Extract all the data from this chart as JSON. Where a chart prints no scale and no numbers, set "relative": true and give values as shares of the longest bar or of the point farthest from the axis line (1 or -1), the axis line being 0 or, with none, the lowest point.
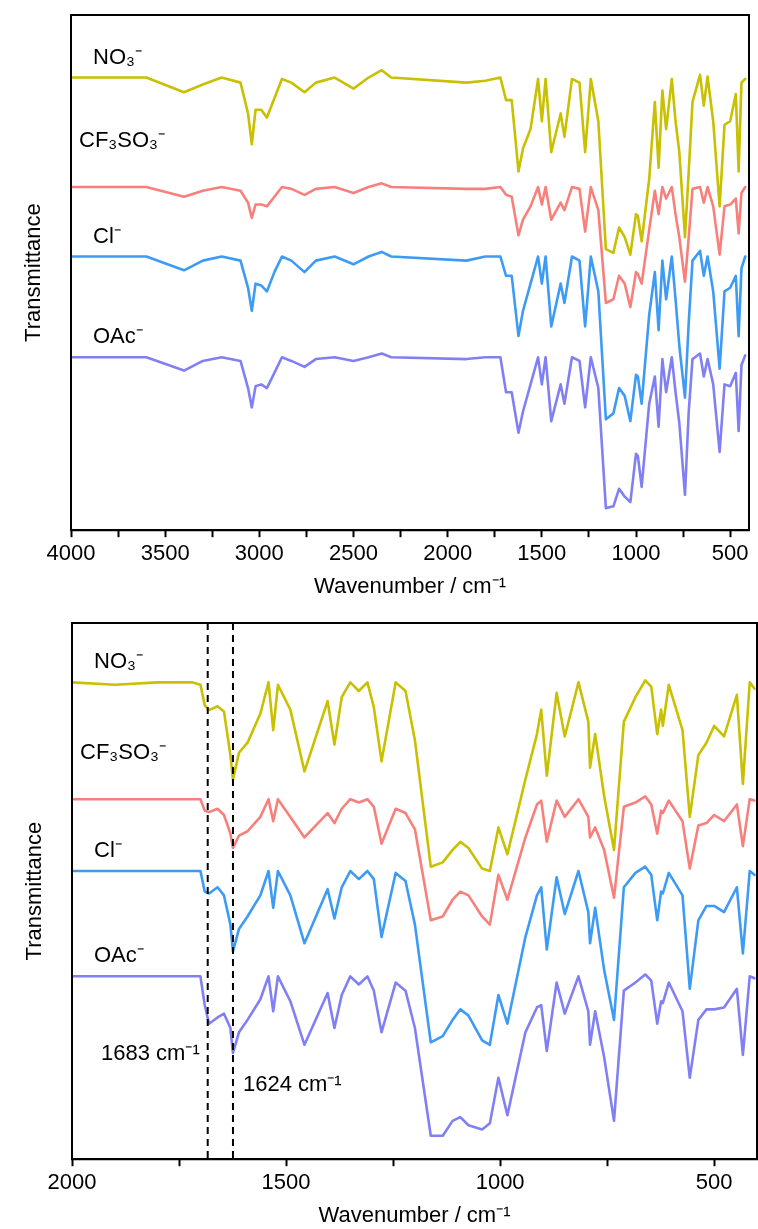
{
  "chart_data": [
    {
      "type": "line",
      "relative": true,
      "xlabel": "Wavenumber / cm⁻¹",
      "ylabel": "Transmittance",
      "legend": false,
      "xlim": [
        4000,
        400
      ],
      "xticks": [
        4000,
        {
          "value": 3750,
          "label": null
        },
        3500,
        {
          "value": 3250,
          "label": null
        },
        3000,
        {
          "value": 2750,
          "label": null
        },
        2500,
        {
          "value": 2250,
          "label": null
        },
        2000,
        {
          "value": 1750,
          "label": null
        },
        1500,
        {
          "value": 1250,
          "label": null
        },
        1000,
        {
          "value": 750,
          "label": null
        },
        500
      ],
      "x": [
        4000,
        3600,
        3400,
        3300,
        3200,
        3100,
        3060,
        3040,
        3020,
        2990,
        2960,
        2920,
        2880,
        2830,
        2760,
        2700,
        2600,
        2500,
        2420,
        2350,
        2300,
        1900,
        1800,
        1720,
        1690,
        1660,
        1624,
        1600,
        1560,
        1520,
        1500,
        1480,
        1450,
        1400,
        1380,
        1340,
        1300,
        1270,
        1240,
        1200,
        1160,
        1120,
        1090,
        1060,
        1030,
        1000,
        990,
        970,
        930,
        900,
        880,
        860,
        840,
        810,
        790,
        770,
        740,
        720,
        700,
        660,
        640,
        620,
        590,
        556,
        530,
        500,
        470,
        455,
        440,
        420
      ],
      "series": [
        {
          "name": "NO₃⁻",
          "color": "#c8c000",
          "values": [
            0.984,
            0.984,
            0.952,
            0.969,
            0.984,
            0.973,
            0.906,
            0.839,
            0.914,
            0.914,
            0.897,
            0.939,
            0.981,
            0.973,
            0.952,
            0.973,
            0.984,
            0.96,
            0.984,
            1.0,
            0.984,
            0.973,
            0.977,
            0.984,
            0.935,
            0.935,
            0.78,
            0.83,
            0.872,
            0.981,
            0.889,
            0.981,
            0.822,
            0.906,
            0.855,
            0.981,
            0.973,
            0.822,
            0.981,
            0.889,
            0.611,
            0.603,
            0.658,
            0.637,
            0.599,
            0.687,
            0.683,
            0.628,
            0.763,
            0.931,
            0.788,
            0.956,
            0.872,
            0.981,
            0.889,
            0.822,
            0.637,
            0.78,
            0.931,
            0.99,
            0.923,
            0.986,
            0.889,
            0.704,
            0.881,
            0.889,
            0.948,
            0.78,
            0.973,
            0.981
          ]
        },
        {
          "name": "CF₃SO₃⁻",
          "color": "#f8807c",
          "values": [
            0.746,
            0.746,
            0.725,
            0.738,
            0.746,
            0.738,
            0.712,
            0.679,
            0.708,
            0.708,
            0.704,
            0.725,
            0.746,
            0.742,
            0.729,
            0.742,
            0.746,
            0.733,
            0.746,
            0.754,
            0.746,
            0.742,
            0.742,
            0.746,
            0.729,
            0.725,
            0.641,
            0.675,
            0.704,
            0.746,
            0.708,
            0.746,
            0.675,
            0.712,
            0.696,
            0.746,
            0.742,
            0.649,
            0.746,
            0.696,
            0.494,
            0.502,
            0.553,
            0.536,
            0.485,
            0.561,
            0.557,
            0.536,
            0.653,
            0.738,
            0.687,
            0.746,
            0.721,
            0.746,
            0.687,
            0.637,
            0.54,
            0.637,
            0.742,
            0.746,
            0.712,
            0.746,
            0.704,
            0.599,
            0.704,
            0.708,
            0.721,
            0.645,
            0.733,
            0.746
          ]
        },
        {
          "name": "Cl⁻",
          "color": "#3d9bf5",
          "values": [
            0.595,
            0.595,
            0.565,
            0.586,
            0.595,
            0.586,
            0.527,
            0.477,
            0.536,
            0.532,
            0.519,
            0.561,
            0.595,
            0.586,
            0.561,
            0.586,
            0.595,
            0.578,
            0.595,
            0.605,
            0.595,
            0.586,
            0.595,
            0.595,
            0.553,
            0.553,
            0.422,
            0.477,
            0.536,
            0.595,
            0.536,
            0.595,
            0.443,
            0.536,
            0.494,
            0.595,
            0.586,
            0.443,
            0.595,
            0.519,
            0.241,
            0.254,
            0.309,
            0.292,
            0.237,
            0.338,
            0.334,
            0.275,
            0.468,
            0.561,
            0.435,
            0.586,
            0.502,
            0.595,
            0.502,
            0.401,
            0.288,
            0.452,
            0.586,
            0.607,
            0.553,
            0.595,
            0.519,
            0.351,
            0.519,
            0.527,
            0.553,
            0.422,
            0.569,
            0.595
          ]
        },
        {
          "name": "OAc⁻",
          "color": "#8080f4",
          "values": [
            0.376,
            0.376,
            0.347,
            0.368,
            0.376,
            0.368,
            0.309,
            0.267,
            0.313,
            0.317,
            0.309,
            0.342,
            0.376,
            0.368,
            0.355,
            0.372,
            0.376,
            0.368,
            0.376,
            0.384,
            0.376,
            0.372,
            0.376,
            0.376,
            0.3,
            0.3,
            0.212,
            0.258,
            0.317,
            0.376,
            0.317,
            0.376,
            0.237,
            0.317,
            0.275,
            0.376,
            0.368,
            0.267,
            0.376,
            0.309,
            0.048,
            0.052,
            0.09,
            0.073,
            0.061,
            0.166,
            0.161,
            0.094,
            0.275,
            0.334,
            0.225,
            0.372,
            0.3,
            0.376,
            0.3,
            0.233,
            0.077,
            0.258,
            0.372,
            0.384,
            0.334,
            0.372,
            0.317,
            0.17,
            0.317,
            0.313,
            0.342,
            0.216,
            0.359,
            0.38
          ]
        }
      ]
    },
    {
      "type": "line",
      "relative": true,
      "xlabel": "Wavenumber / cm⁻¹",
      "ylabel": "Transmittance",
      "legend": false,
      "xlim": [
        2000,
        400
      ],
      "xticks": [
        2000,
        {
          "value": 1750,
          "label": null
        },
        1500,
        {
          "value": 1250,
          "label": null
        },
        1000,
        {
          "value": 750,
          "label": null
        },
        500
      ],
      "x": [
        2000,
        1900,
        1800,
        1720,
        1700,
        1690,
        1680,
        1660,
        1645,
        1630,
        1624,
        1610,
        1590,
        1560,
        1541,
        1530,
        1519,
        1490,
        1457,
        1403,
        1387,
        1370,
        1350,
        1330,
        1310,
        1295,
        1277,
        1244,
        1221,
        1199,
        1162,
        1134,
        1111,
        1093,
        1074,
        1042,
        1024,
        1004,
        983,
        941,
        914,
        904,
        891,
        868,
        849,
        817,
        794,
        790,
        778,
        757,
        734,
        711,
        684,
        661,
        647,
        633,
        624,
        620,
        606,
        574,
        557,
        537,
        518,
        500,
        477,
        447,
        433,
        417,
        406
      ],
      "ref_lines": [
        {
          "axis": "x",
          "value": 1683,
          "line_style": "dashed",
          "color": "#000000"
        },
        {
          "axis": "x",
          "value": 1624,
          "line_style": "dashed",
          "color": "#000000"
        }
      ],
      "annotations": [
        {
          "text": "1683 cm⁻¹",
          "x": 1683,
          "y": 0.22
        },
        {
          "text": "1624 cm⁻¹",
          "x": 1624,
          "y": 0.155
        }
      ],
      "series": [
        {
          "name": "NO₃⁻",
          "color": "#c8c000",
          "values": [
            0.996,
            0.991,
            0.996,
            0.996,
            0.991,
            0.948,
            0.938,
            0.946,
            0.935,
            0.844,
            0.793,
            0.849,
            0.87,
            0.931,
            0.996,
            0.896,
            0.991,
            0.939,
            0.81,
            0.957,
            0.866,
            0.965,
            0.996,
            0.978,
            0.996,
            0.944,
            0.831,
            0.996,
            0.978,
            0.875,
            0.611,
            0.62,
            0.646,
            0.663,
            0.65,
            0.607,
            0.602,
            0.693,
            0.637,
            0.793,
            0.888,
            0.939,
            0.801,
            0.974,
            0.883,
            0.996,
            0.914,
            0.818,
            0.888,
            0.758,
            0.646,
            0.914,
            0.965,
            1.0,
            0.987,
            0.888,
            0.939,
            0.905,
            0.991,
            0.896,
            0.715,
            0.844,
            0.87,
            0.905,
            0.883,
            0.97,
            0.784,
            0.996,
            0.983
          ]
        },
        {
          "name": "CF₃SO₃⁻",
          "color": "#f8807c",
          "values": [
            0.752,
            0.752,
            0.752,
            0.752,
            0.752,
            0.728,
            0.725,
            0.732,
            0.719,
            0.68,
            0.65,
            0.676,
            0.685,
            0.715,
            0.752,
            0.706,
            0.752,
            0.715,
            0.672,
            0.723,
            0.702,
            0.732,
            0.752,
            0.745,
            0.752,
            0.736,
            0.659,
            0.732,
            0.723,
            0.689,
            0.499,
            0.507,
            0.542,
            0.559,
            0.551,
            0.507,
            0.49,
            0.594,
            0.542,
            0.672,
            0.741,
            0.749,
            0.663,
            0.749,
            0.715,
            0.752,
            0.715,
            0.672,
            0.693,
            0.646,
            0.546,
            0.736,
            0.745,
            0.758,
            0.741,
            0.68,
            0.728,
            0.723,
            0.749,
            0.706,
            0.607,
            0.697,
            0.702,
            0.719,
            0.706,
            0.741,
            0.654,
            0.752,
            0.749
          ]
        },
        {
          "name": "Cl⁻",
          "color": "#3d9bf5",
          "values": [
            0.602,
            0.602,
            0.602,
            0.602,
            0.602,
            0.559,
            0.555,
            0.568,
            0.551,
            0.49,
            0.434,
            0.481,
            0.507,
            0.551,
            0.602,
            0.525,
            0.602,
            0.551,
            0.451,
            0.564,
            0.503,
            0.568,
            0.602,
            0.585,
            0.602,
            0.585,
            0.464,
            0.598,
            0.581,
            0.49,
            0.244,
            0.257,
            0.291,
            0.313,
            0.3,
            0.248,
            0.239,
            0.343,
            0.283,
            0.464,
            0.551,
            0.568,
            0.438,
            0.589,
            0.512,
            0.602,
            0.516,
            0.451,
            0.525,
            0.395,
            0.291,
            0.568,
            0.598,
            0.611,
            0.594,
            0.499,
            0.559,
            0.555,
            0.598,
            0.551,
            0.356,
            0.499,
            0.529,
            0.529,
            0.516,
            0.568,
            0.43,
            0.602,
            0.594
          ]
        },
        {
          "name": "OAc⁻",
          "color": "#8080f4",
          "values": [
            0.382,
            0.382,
            0.382,
            0.382,
            0.382,
            0.322,
            0.283,
            0.296,
            0.304,
            0.274,
            0.222,
            0.265,
            0.291,
            0.334,
            0.382,
            0.309,
            0.382,
            0.33,
            0.239,
            0.347,
            0.274,
            0.343,
            0.382,
            0.365,
            0.382,
            0.352,
            0.265,
            0.369,
            0.352,
            0.274,
            0.049,
            0.049,
            0.08,
            0.088,
            0.071,
            0.062,
            0.075,
            0.17,
            0.092,
            0.265,
            0.317,
            0.322,
            0.226,
            0.369,
            0.304,
            0.382,
            0.309,
            0.239,
            0.309,
            0.213,
            0.08,
            0.352,
            0.369,
            0.386,
            0.373,
            0.283,
            0.33,
            0.326,
            0.369,
            0.309,
            0.17,
            0.291,
            0.313,
            0.313,
            0.317,
            0.356,
            0.218,
            0.382,
            0.378
          ]
        }
      ]
    }
  ]
}
